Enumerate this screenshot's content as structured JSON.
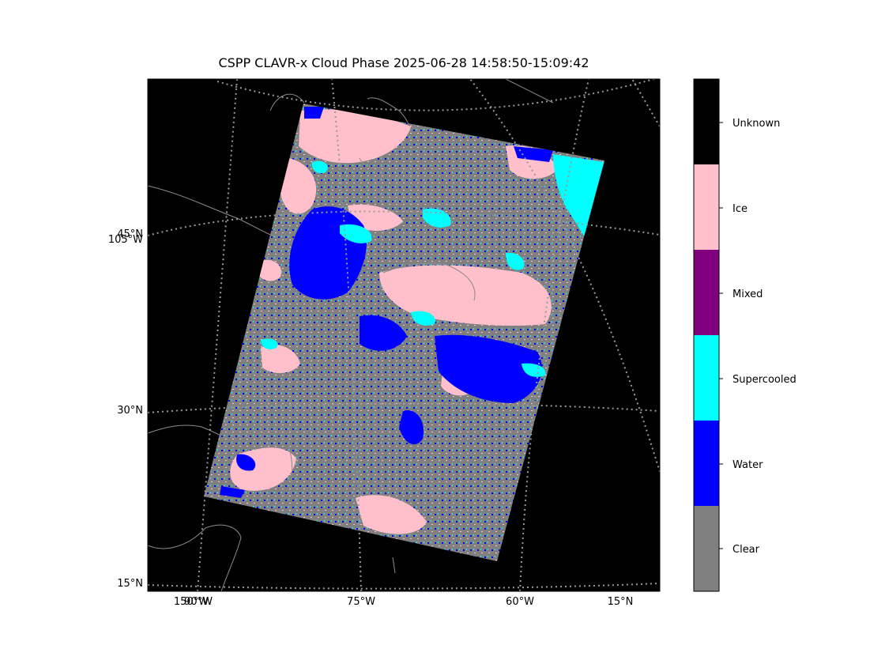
{
  "title": "CSPP CLAVR-x Cloud Phase 2025-06-28 14:58:50-15:09:42",
  "map": {
    "lat_labels": [
      "45°N",
      "30°N",
      "15°N"
    ],
    "lon_labels_bottom": [
      "150°W",
      "90°W",
      "75°W",
      "60°W",
      "15°N"
    ],
    "lon_label_left": "105°W"
  },
  "legend": {
    "type": "categorical-colorbar",
    "entries": [
      {
        "label": "Unknown",
        "color": "#000000"
      },
      {
        "label": "Ice",
        "color": "#ffc0cb"
      },
      {
        "label": "Mixed",
        "color": "#800080"
      },
      {
        "label": "Supercooled",
        "color": "#00ffff"
      },
      {
        "label": "Water",
        "color": "#0000ff"
      },
      {
        "label": "Clear",
        "color": "#808080"
      }
    ]
  },
  "colors": {
    "background": "#000000",
    "graticule": "#9a9a9a",
    "coastline": "#8c8c8c",
    "clear": "#808080",
    "water": "#0000ff",
    "supercooled": "#00ffff",
    "mixed": "#800080",
    "ice": "#ffc0cb"
  }
}
